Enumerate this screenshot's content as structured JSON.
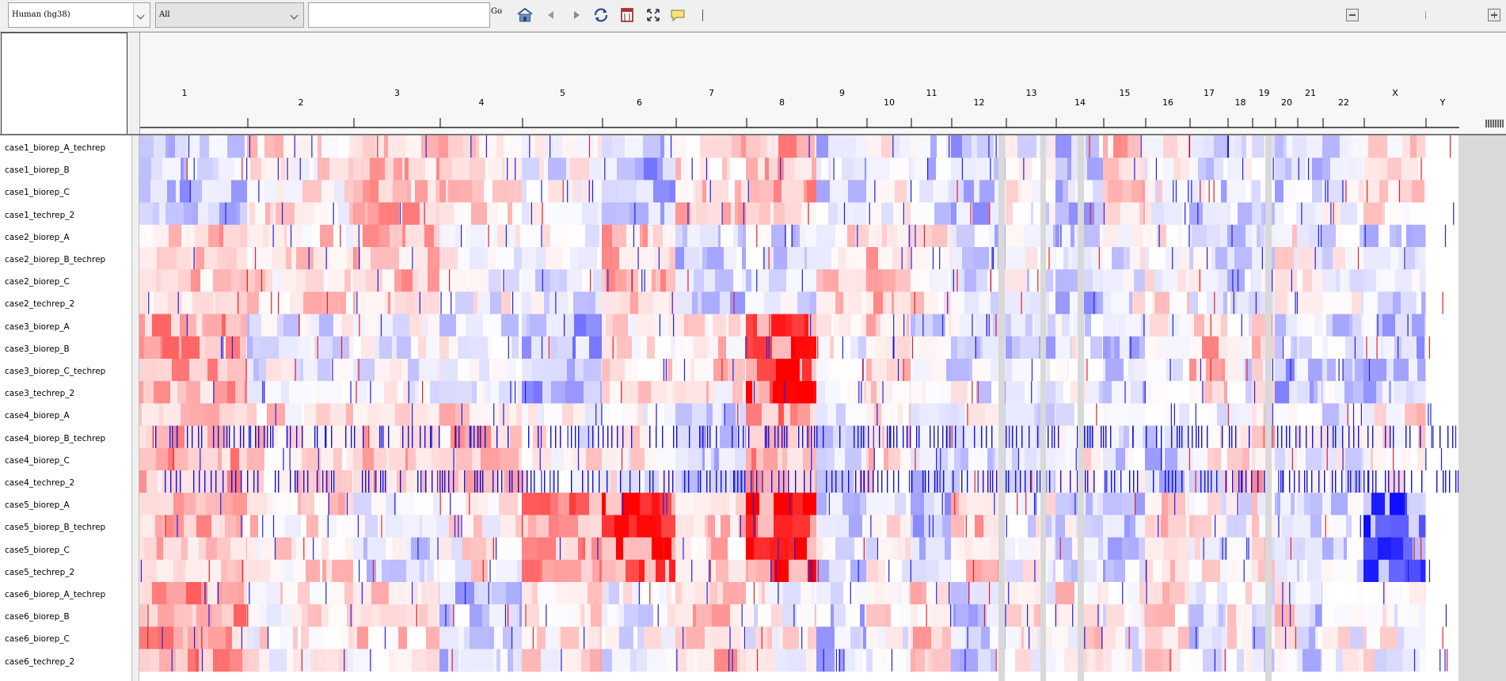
{
  "toolbar": {
    "genome_value": "Human (hg38)",
    "chromosome_value": "All",
    "locus_value": "",
    "go_label": "Go"
  },
  "colors": {
    "gain": "#ff0000",
    "loss": "#0000ff",
    "neutral": "#ffffff",
    "no_data": "#d9d9d9"
  },
  "chromosomes": [
    "1",
    "2",
    "3",
    "4",
    "5",
    "6",
    "7",
    "8",
    "9",
    "10",
    "11",
    "12",
    "13",
    "14",
    "15",
    "16",
    "17",
    "18",
    "19",
    "20",
    "21",
    "22",
    "X",
    "Y"
  ],
  "tracks": [
    "case1_biorep_A_techrep",
    "case1_biorep_B",
    "case1_biorep_C",
    "case1_techrep_2",
    "case2_biorep_A",
    "case2_biorep_B_techrep",
    "case2_biorep_C",
    "case2_techrep_2",
    "case3_biorep_A",
    "case3_biorep_B",
    "case3_biorep_C_techrep",
    "case3_techrep_2",
    "case4_biorep_A",
    "case4_biorep_B_techrep",
    "case4_biorep_C",
    "case4_techrep_2",
    "case5_biorep_A",
    "case5_biorep_B_techrep",
    "case5_biorep_C",
    "case5_techrep_2",
    "case6_biorep_A_techrep",
    "case6_biorep_B",
    "case6_biorep_C",
    "case6_techrep_2"
  ]
}
